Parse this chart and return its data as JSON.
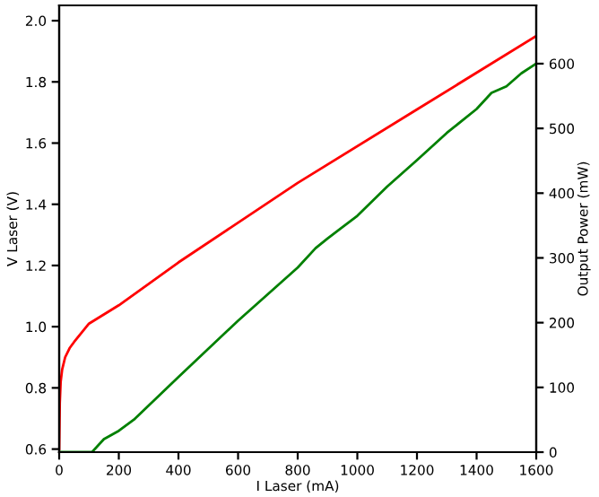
{
  "chart_data": {
    "type": "line",
    "xlabel": "I Laser (mA)",
    "ylabel": "V Laser (V)",
    "y2label": "Output Power (mW)",
    "xlim": [
      0,
      1600
    ],
    "xticks": [
      0,
      200,
      400,
      600,
      800,
      1000,
      1200,
      1400,
      1600
    ],
    "ylim": [
      0.59,
      2.05
    ],
    "yticks": [
      0.6,
      0.8,
      {
        "value": 1.0,
        "label": "1.0"
      },
      1.2,
      1.4,
      1.6,
      1.8,
      {
        "value": 2.0,
        "label": "2.0"
      }
    ],
    "y2lim": [
      0,
      690
    ],
    "y2ticks": [
      0,
      100,
      200,
      300,
      400,
      500,
      600
    ],
    "grid": false,
    "marker": "none",
    "line_style": "solid",
    "series": [
      {
        "color": "#ff0000",
        "x": [
          0,
          2,
          5,
          10,
          20,
          35,
          50,
          75,
          100,
          150,
          200,
          400,
          800,
          1200,
          1600
        ],
        "values": [
          0.6,
          0.75,
          0.82,
          0.86,
          0.9,
          0.93,
          0.95,
          0.98,
          1.01,
          1.04,
          1.07,
          1.21,
          1.47,
          1.71,
          1.95
        ]
      },
      {
        "color": "#008000",
        "axis": "y2",
        "x": [
          0,
          110,
          150,
          200,
          250,
          400,
          600,
          800,
          860,
          900,
          1000,
          1100,
          1200,
          1300,
          1400,
          1450,
          1500,
          1550,
          1600
        ],
        "values": [
          0,
          0,
          20,
          33,
          50,
          116,
          203,
          285,
          315,
          330,
          365,
          410,
          451,
          493,
          530,
          555,
          565,
          585,
          600
        ]
      }
    ]
  }
}
